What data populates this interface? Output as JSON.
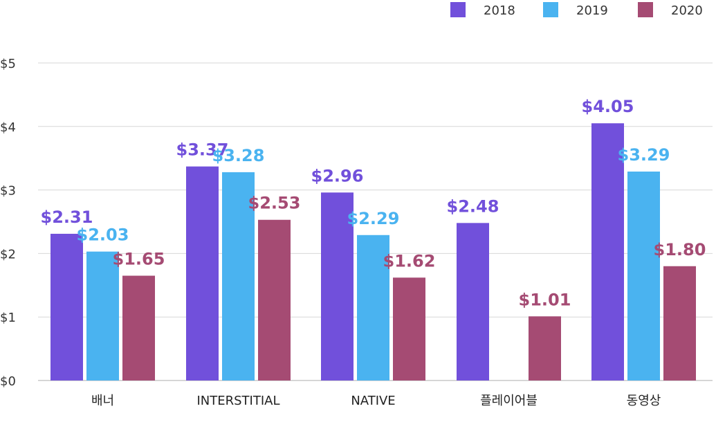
{
  "chart_data": {
    "type": "bar",
    "categories": [
      "배너",
      "INTERSTITIAL",
      "NATIVE",
      "플레이어블",
      "동영상"
    ],
    "series": [
      {
        "name": "2018",
        "color": "#7150db",
        "values": [
          2.31,
          3.37,
          2.96,
          2.48,
          4.05
        ],
        "labels": [
          "$2.31",
          "$3.37",
          "$2.96",
          "$2.48",
          "$4.05"
        ]
      },
      {
        "name": "2019",
        "color": "#4ab3f0",
        "values": [
          2.03,
          3.28,
          2.29,
          null,
          3.29
        ],
        "labels": [
          "$2.03",
          "$3.28",
          "$2.29",
          null,
          "$3.29"
        ]
      },
      {
        "name": "2020",
        "color": "#a54b73",
        "values": [
          1.65,
          2.53,
          1.62,
          1.01,
          1.8
        ],
        "labels": [
          "$1.65",
          "$2.53",
          "$1.62",
          "$1.01",
          "$1.80"
        ]
      }
    ],
    "ylim": [
      0,
      5
    ],
    "yticks": [
      0,
      1,
      2,
      3,
      4,
      5
    ],
    "ytick_labels": [
      "$0",
      "$1",
      "$2",
      "$3",
      "$4",
      "$5"
    ],
    "grid": true,
    "legend_position": "top-right"
  }
}
